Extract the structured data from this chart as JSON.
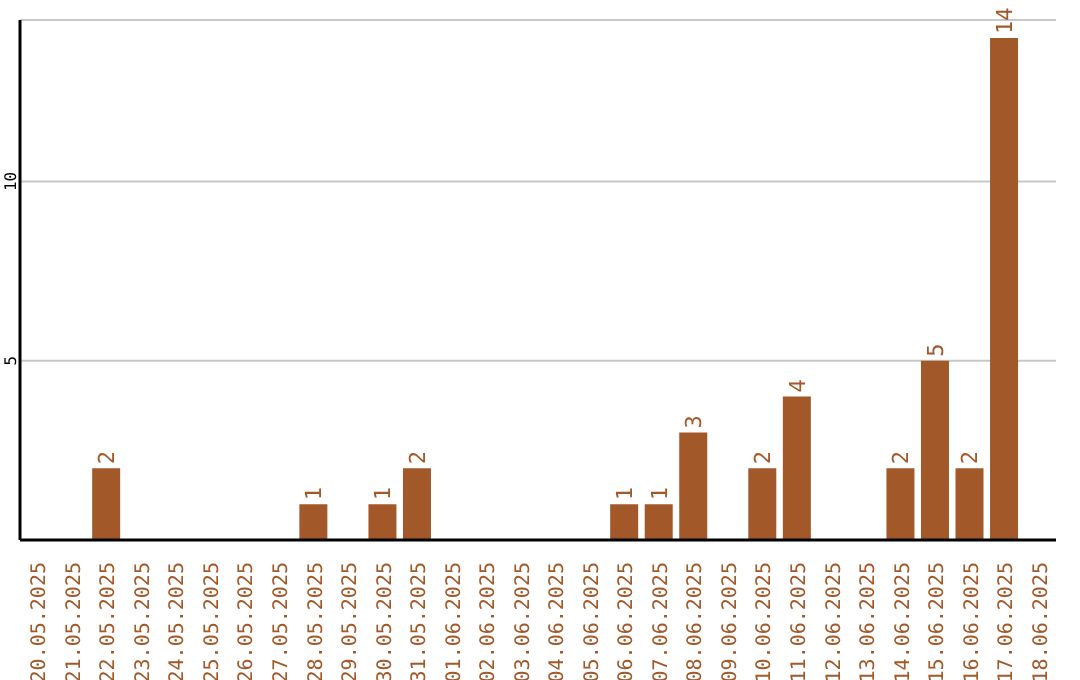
{
  "chart_data": {
    "type": "bar",
    "categories": [
      "20.05.2025",
      "21.05.2025",
      "22.05.2025",
      "23.05.2025",
      "24.05.2025",
      "25.05.2025",
      "26.05.2025",
      "27.05.2025",
      "28.05.2025",
      "29.05.2025",
      "30.05.2025",
      "31.05.2025",
      "01.06.2025",
      "02.06.2025",
      "03.06.2025",
      "04.06.2025",
      "05.06.2025",
      "06.06.2025",
      "07.06.2025",
      "08.06.2025",
      "09.06.2025",
      "10.06.2025",
      "11.06.2025",
      "12.06.2025",
      "13.06.2025",
      "14.06.2025",
      "15.06.2025",
      "16.06.2025",
      "17.06.2025",
      "18.06.2025"
    ],
    "values": [
      0,
      0,
      2,
      0,
      0,
      0,
      0,
      0,
      1,
      0,
      1,
      2,
      0,
      0,
      0,
      0,
      0,
      1,
      1,
      3,
      0,
      2,
      4,
      0,
      0,
      2,
      5,
      2,
      14,
      0
    ],
    "value_labels": [
      null,
      null,
      "2",
      null,
      null,
      null,
      null,
      null,
      "1",
      null,
      "1",
      "2",
      null,
      null,
      null,
      null,
      null,
      "1",
      "1",
      "3",
      null,
      "2",
      "4",
      null,
      null,
      "2",
      "5",
      "2",
      "14",
      null
    ],
    "color": "#a25828",
    "ylim": [
      0,
      14.5
    ],
    "yticks": [
      5,
      10
    ],
    "grid": "y"
  }
}
